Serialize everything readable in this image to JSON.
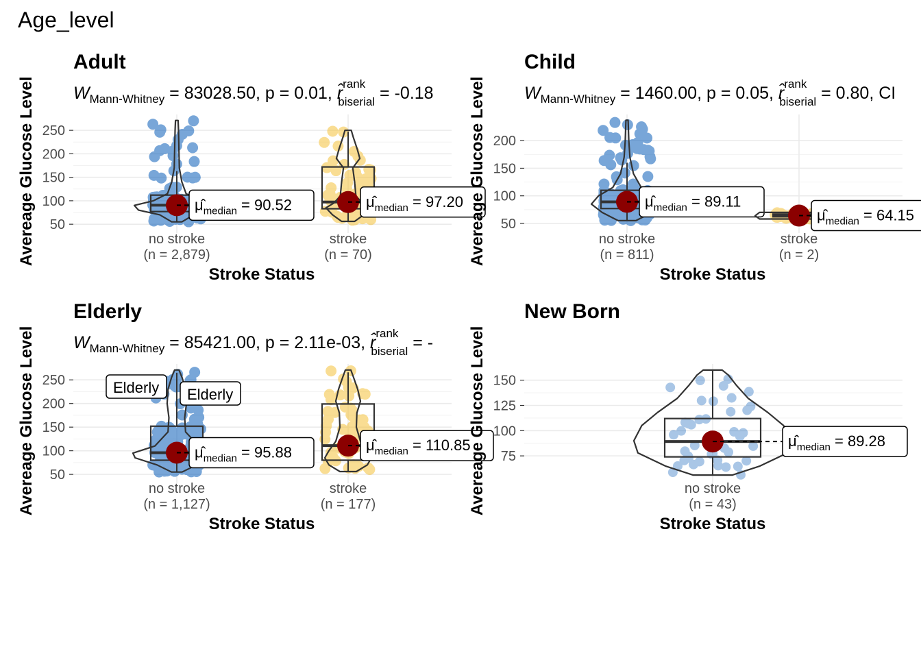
{
  "figure_title": "Age_level",
  "chart_data": [
    {
      "type": "violin-box",
      "panel": "Adult",
      "subtitle": {
        "stat": "W",
        "stat_sub": "Mann-Whitney",
        "rest": " = 83028.50, p = 0.01, ",
        "effect_sub": "biserial",
        "effect_sup": "rank",
        "effect_rest": " = -0.18"
      },
      "xlabel": "Stroke Status",
      "ylabel": "Avereage Glucose Level",
      "ylim": [
        40,
        275
      ],
      "yticks": [
        50,
        100,
        150,
        200,
        250
      ],
      "groups": [
        {
          "name": "no stroke",
          "n_label": "(n = 2,879)",
          "color": "#0B5FBA",
          "median": 90.52,
          "median_label": "90.52",
          "q1": 77,
          "q3": 112,
          "whisker_low": 55,
          "whisker_high": 163,
          "min": 55,
          "max": 271,
          "violin": [
            [
              55,
              0.12
            ],
            [
              70,
              0.4
            ],
            [
              80,
              0.9
            ],
            [
              90,
              1.0
            ],
            [
              100,
              0.55
            ],
            [
              115,
              0.22
            ],
            [
              140,
              0.12
            ],
            [
              170,
              0.06
            ],
            [
              210,
              0.05
            ],
            [
              250,
              0.04
            ],
            [
              271,
              0.03
            ]
          ]
        },
        {
          "name": "stroke",
          "n_label": "(n = 70)",
          "color": "#F5C33B",
          "median": 97.2,
          "median_label": "97.20",
          "q1": 83,
          "q3": 172,
          "whisker_low": 56,
          "whisker_high": 247,
          "min": 56,
          "max": 250,
          "violin": [
            [
              56,
              0.25
            ],
            [
              70,
              0.6
            ],
            [
              85,
              0.85
            ],
            [
              95,
              0.55
            ],
            [
              110,
              0.3
            ],
            [
              140,
              0.25
            ],
            [
              170,
              0.18
            ],
            [
              190,
              0.45
            ],
            [
              210,
              0.35
            ],
            [
              235,
              0.2
            ],
            [
              250,
              0.12
            ]
          ]
        }
      ]
    },
    {
      "type": "violin-box",
      "panel": "Child",
      "subtitle": {
        "stat": "W",
        "stat_sub": "Mann-Whitney",
        "rest": " = 1460.00, p = 0.05, ",
        "effect_sub": "biserial",
        "effect_sup": "rank",
        "effect_rest": " = 0.80, CI"
      },
      "xlabel": "Stroke Status",
      "ylabel": "Avereage Glucose Level",
      "ylim": [
        40,
        240
      ],
      "yticks": [
        50,
        100,
        150,
        200
      ],
      "groups": [
        {
          "name": "no stroke",
          "n_label": "(n = 811)",
          "color": "#0B5FBA",
          "median": 89.11,
          "median_label": "89.11",
          "q1": 77,
          "q3": 110,
          "whisker_low": 55,
          "whisker_high": 160,
          "min": 55,
          "max": 237,
          "violin": [
            [
              55,
              0.25
            ],
            [
              70,
              0.7
            ],
            [
              85,
              1.0
            ],
            [
              100,
              0.8
            ],
            [
              115,
              0.4
            ],
            [
              140,
              0.18
            ],
            [
              170,
              0.08
            ],
            [
              200,
              0.05
            ],
            [
              237,
              0.03
            ]
          ]
        },
        {
          "name": "stroke",
          "n_label": "(n = 2)",
          "color": "#F5C33B",
          "median": 64.15,
          "median_label": "64.15",
          "q1": 62,
          "q3": 67,
          "whisker_low": 60,
          "whisker_high": 68,
          "min": 58,
          "max": 70,
          "violin": [
            [
              58,
              0.9
            ],
            [
              64,
              1.0
            ],
            [
              70,
              0.9
            ]
          ]
        }
      ]
    },
    {
      "type": "violin-box",
      "panel": "Elderly",
      "subtitle": {
        "stat": "W",
        "stat_sub": "Mann-Whitney",
        "rest": " = 85421.00, p = 2.11e-03, ",
        "effect_sub": "biserial",
        "effect_sup": "rank",
        "effect_rest": " = -"
      },
      "xlabel": "Stroke Status",
      "ylabel": "Avereage Glucose Level",
      "ylim": [
        40,
        275
      ],
      "yticks": [
        50,
        100,
        150,
        200,
        250
      ],
      "outlier_labels": [
        "Elderly",
        "Elderly"
      ],
      "groups": [
        {
          "name": "no stroke",
          "n_label": "(n = 1,127)",
          "color": "#0B5FBA",
          "median": 95.88,
          "median_label": "95.88",
          "q1": 80,
          "q3": 152,
          "whisker_low": 55,
          "whisker_high": 265,
          "min": 55,
          "max": 271,
          "violin": [
            [
              55,
              0.12
            ],
            [
              70,
              0.45
            ],
            [
              85,
              0.95
            ],
            [
              95,
              1.0
            ],
            [
              110,
              0.5
            ],
            [
              140,
              0.2
            ],
            [
              170,
              0.18
            ],
            [
              200,
              0.22
            ],
            [
              230,
              0.2
            ],
            [
              255,
              0.12
            ],
            [
              271,
              0.05
            ]
          ]
        },
        {
          "name": "stroke",
          "n_label": "(n = 177)",
          "color": "#F5C33B",
          "median": 110.85,
          "median_label": "110.85",
          "q1": 80,
          "q3": 199,
          "whisker_low": 56,
          "whisker_high": 266,
          "min": 56,
          "max": 271,
          "violin": [
            [
              56,
              0.3
            ],
            [
              70,
              0.7
            ],
            [
              85,
              0.85
            ],
            [
              100,
              0.7
            ],
            [
              120,
              0.45
            ],
            [
              150,
              0.3
            ],
            [
              180,
              0.32
            ],
            [
              205,
              0.45
            ],
            [
              230,
              0.35
            ],
            [
              255,
              0.2
            ],
            [
              271,
              0.1
            ]
          ]
        }
      ]
    },
    {
      "type": "violin-box",
      "panel": "New Born",
      "xlabel": "Stroke Status",
      "ylabel": "Avereage Glucose Level",
      "ylim": [
        52,
        162
      ],
      "yticks": [
        75,
        100,
        125,
        150
      ],
      "groups": [
        {
          "name": "no stroke",
          "n_label": "(n = 43)",
          "color": "#0B5FBA",
          "median": 89.28,
          "median_label": "89.28",
          "q1": 74,
          "q3": 112,
          "whisker_low": 56,
          "whisker_high": 160,
          "min": 56,
          "max": 160,
          "violin": [
            [
              56,
              0.25
            ],
            [
              65,
              0.6
            ],
            [
              78,
              0.95
            ],
            [
              90,
              1.0
            ],
            [
              105,
              0.9
            ],
            [
              118,
              0.7
            ],
            [
              132,
              0.45
            ],
            [
              145,
              0.3
            ],
            [
              155,
              0.2
            ],
            [
              160,
              0.12
            ]
          ]
        }
      ]
    }
  ]
}
